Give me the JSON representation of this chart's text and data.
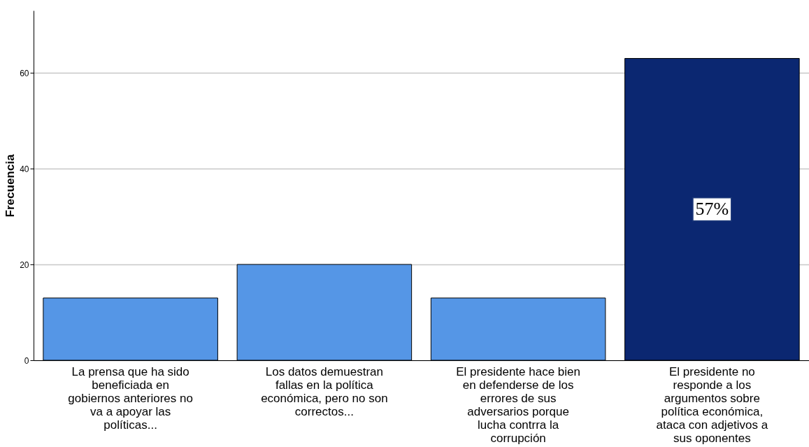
{
  "chart_data": {
    "type": "bar",
    "ylabel": "Frecuencia",
    "categories": [
      "La prensa que ha sido beneficiada en gobiernos anteriores no va a apoyar las políticas...",
      "Los datos demuestran fallas en la política económica,  pero no son correctos...",
      "El presidente hace bien en defenderse de los errores de sus adversarios porque lucha contrra la corrupción",
      "El presidente no responde a los argumentos sobre política económica, ataca con adjetivos a sus oponentes"
    ],
    "values": [
      13,
      20,
      13,
      63
    ],
    "colors": [
      "#5596e6",
      "#5596e6",
      "#5596e6",
      "#0b2771"
    ],
    "ylim": [
      0,
      73
    ],
    "yticks": [
      0,
      20,
      40,
      60
    ],
    "grid": "y",
    "annotations": [
      "57%"
    ]
  }
}
